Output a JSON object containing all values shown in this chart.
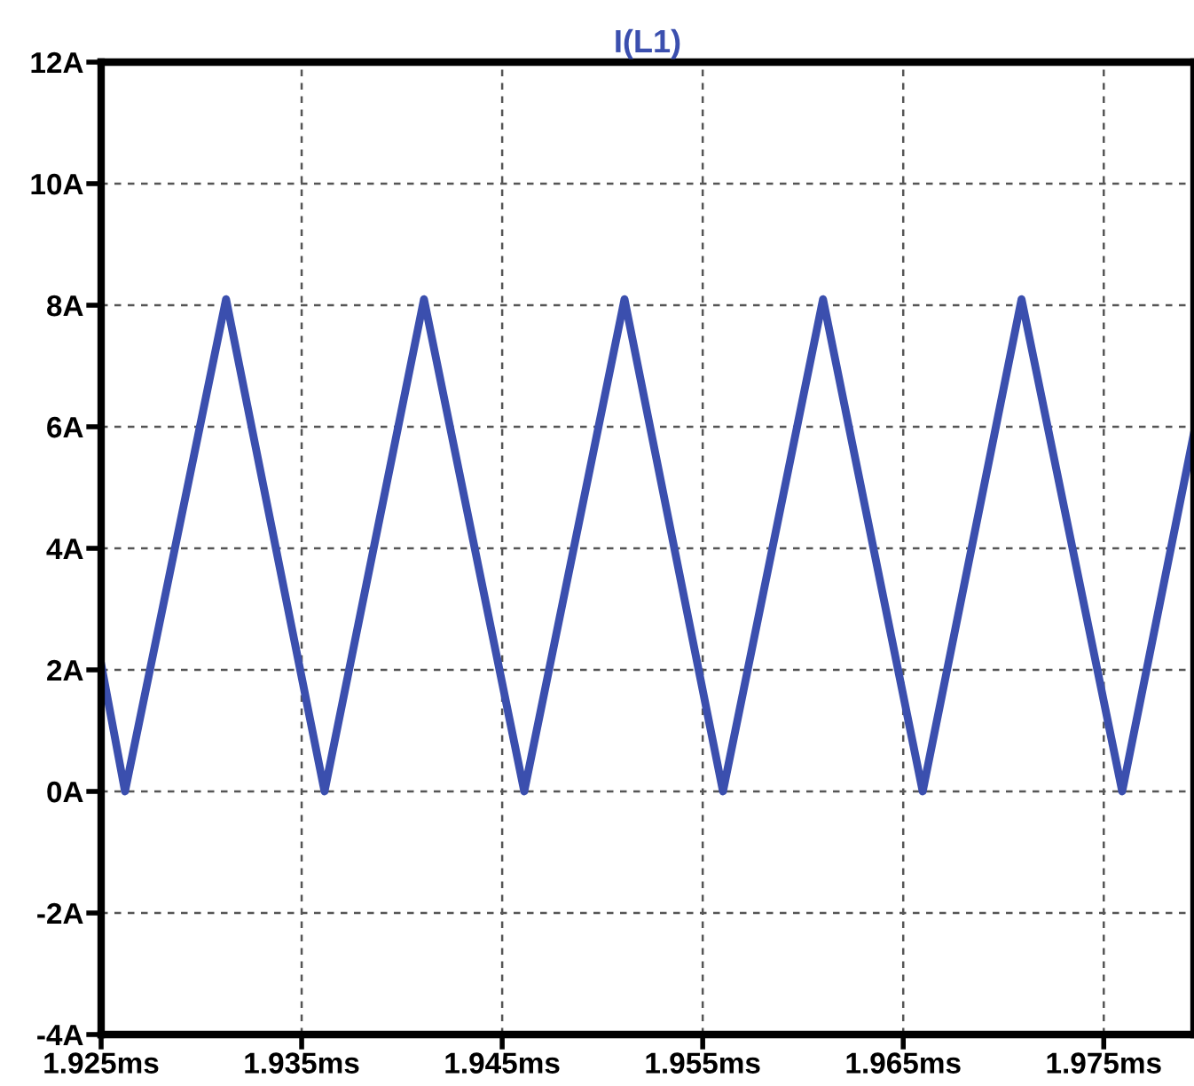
{
  "chart_data": {
    "type": "line",
    "title": "I(L1)",
    "x": [
      1.925,
      1.92619,
      1.93123,
      1.93614,
      1.9411,
      1.9461,
      1.9511,
      1.95601,
      1.961,
      1.96597,
      1.9709,
      1.97592,
      1.9795
    ],
    "series": [
      {
        "color": "#3b4fae",
        "values": [
          2.1,
          0,
          8.1,
          0,
          8.1,
          0,
          8.1,
          0,
          8.1,
          0,
          8.1,
          0,
          5.9
        ]
      }
    ],
    "xlim": [
      1.925,
      1.9795
    ],
    "xticks": [
      {
        "value": 1.925,
        "label": "1.925ms"
      },
      {
        "value": 1.935,
        "label": "1.935ms"
      },
      {
        "value": 1.945,
        "label": "1.945ms"
      },
      {
        "value": 1.955,
        "label": "1.955ms"
      },
      {
        "value": 1.965,
        "label": "1.965ms"
      },
      {
        "value": 1.975,
        "label": "1.975ms"
      }
    ],
    "ylim": [
      -4,
      12
    ],
    "yticks": [
      {
        "value": -4,
        "label": "-4A"
      },
      {
        "value": -2,
        "label": "-2A"
      },
      {
        "value": 0,
        "label": "0A"
      },
      {
        "value": 2,
        "label": "2A"
      },
      {
        "value": 4,
        "label": "4A"
      },
      {
        "value": 6,
        "label": "6A"
      },
      {
        "value": 8,
        "label": "8A"
      },
      {
        "value": 10,
        "label": "10A"
      },
      {
        "value": 12,
        "label": "12A"
      }
    ],
    "grid": true,
    "line_style": "solid",
    "marker": "none"
  }
}
